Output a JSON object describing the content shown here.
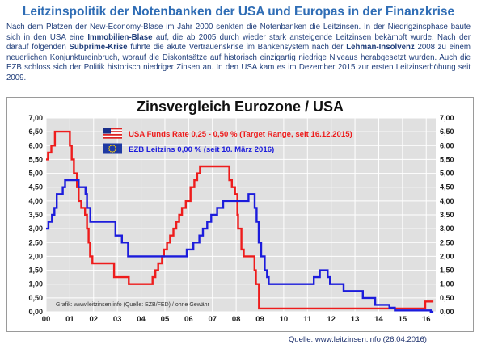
{
  "header": {
    "title": "Leitzinspolitik der Notenbanken der USA und Europas in der Finanzkrise",
    "intro_parts": [
      {
        "text": "Nach dem Platzen der New-Economy-Blase im Jahr 2000 senkten die Notenbanken die Leitzinsen. In der Niedrigzinsphase baute sich in den USA eine ",
        "bold": false
      },
      {
        "text": "Immobilien-Blase",
        "bold": true
      },
      {
        "text": " auf, die ab 2005 durch wieder stark ansteigende Leitzinsen bekämpft wurde.  Nach der darauf folgenden ",
        "bold": false
      },
      {
        "text": "Subprime-Krise",
        "bold": true
      },
      {
        "text": " führte die akute Vertrauenskrise im Bankensystem nach der ",
        "bold": false
      },
      {
        "text": "Lehman-Insolvenz",
        "bold": true
      },
      {
        "text": " 2008 zu einem neuerlichen Konjunktureinbruch, worauf die Diskontsätze auf historisch einzigartig niedrige Niveaus herabgesetzt wurden. Auch die EZB schloss sich der Politik historisch niedriger Zinsen an. In den USA kam es im Dezember 2015 zur ersten Leitzinserhöhung seit 2009.",
        "bold": false
      }
    ]
  },
  "footer": {
    "source": "Quelle: www.leitzinsen.info (26.04.2016)"
  },
  "chart_data": {
    "type": "line",
    "title": "Zinsvergleich Eurozone / USA",
    "xlabel": "",
    "ylabel": "",
    "xlim": [
      2000.0,
      2016.4
    ],
    "ylim": [
      0,
      7
    ],
    "x_ticks": [
      2000,
      2001,
      2002,
      2003,
      2004,
      2005,
      2006,
      2007,
      2008,
      2009,
      2010,
      2011,
      2012,
      2013,
      2014,
      2015,
      2016
    ],
    "x_tick_labels": [
      "00",
      "01",
      "02",
      "03",
      "04",
      "05",
      "06",
      "07",
      "08",
      "09",
      "10",
      "11",
      "12",
      "13",
      "14",
      "15",
      "16"
    ],
    "y_ticks": [
      0,
      0.5,
      1,
      1.5,
      2,
      2.5,
      3,
      3.5,
      4,
      4.5,
      5,
      5.5,
      6,
      6.5,
      7
    ],
    "y_tick_labels": [
      "0,00",
      "0,50",
      "1,00",
      "1,50",
      "2,00",
      "2,50",
      "3,00",
      "3,50",
      "4,00",
      "4,50",
      "5,00",
      "5,50",
      "6,00",
      "6,50",
      "7,00"
    ],
    "grid": true,
    "legend_position": "top-center",
    "colors": {
      "usa": "#ee1c1c",
      "ezb": "#1c1cdc",
      "background": "#e0e0e0",
      "grid": "#ffffff"
    },
    "watermark": "Grafik: www.leitzinsen.info (Quelle: EZB/FED) / ohne Gewähr",
    "series": [
      {
        "key": "usa",
        "name": "USA Funds Rate 0,25 - 0,50 % (Target Range, seit 16.12.2015)",
        "flag": "us-flag",
        "step": true,
        "points": [
          [
            2000.0,
            5.5
          ],
          [
            2000.08,
            5.75
          ],
          [
            2000.22,
            6.0
          ],
          [
            2000.37,
            6.5
          ],
          [
            2001.0,
            6.0
          ],
          [
            2001.08,
            5.5
          ],
          [
            2001.17,
            5.0
          ],
          [
            2001.3,
            4.5
          ],
          [
            2001.37,
            4.0
          ],
          [
            2001.48,
            3.75
          ],
          [
            2001.64,
            3.5
          ],
          [
            2001.72,
            3.0
          ],
          [
            2001.79,
            2.5
          ],
          [
            2001.85,
            2.0
          ],
          [
            2001.95,
            1.75
          ],
          [
            2002.86,
            1.25
          ],
          [
            2003.48,
            1.0
          ],
          [
            2004.48,
            1.25
          ],
          [
            2004.6,
            1.5
          ],
          [
            2004.72,
            1.75
          ],
          [
            2004.88,
            2.0
          ],
          [
            2004.96,
            2.25
          ],
          [
            2005.09,
            2.5
          ],
          [
            2005.22,
            2.75
          ],
          [
            2005.36,
            3.0
          ],
          [
            2005.48,
            3.25
          ],
          [
            2005.6,
            3.5
          ],
          [
            2005.72,
            3.75
          ],
          [
            2005.88,
            4.0
          ],
          [
            2006.08,
            4.5
          ],
          [
            2006.24,
            4.75
          ],
          [
            2006.36,
            5.0
          ],
          [
            2006.48,
            5.25
          ],
          [
            2007.71,
            4.75
          ],
          [
            2007.82,
            4.5
          ],
          [
            2007.95,
            4.25
          ],
          [
            2008.05,
            3.5
          ],
          [
            2008.08,
            3.0
          ],
          [
            2008.22,
            2.25
          ],
          [
            2008.32,
            2.0
          ],
          [
            2008.77,
            1.5
          ],
          [
            2008.83,
            1.0
          ],
          [
            2008.96,
            0.12
          ],
          [
            2015.96,
            0.37
          ]
        ],
        "x_end": 2016.3
      },
      {
        "key": "ezb",
        "name": "EZB Leitzins 0,00 %  (seit 10. März 2016)",
        "flag": "eu-flag",
        "step": true,
        "points": [
          [
            2000.0,
            3.0
          ],
          [
            2000.1,
            3.25
          ],
          [
            2000.25,
            3.5
          ],
          [
            2000.35,
            3.75
          ],
          [
            2000.45,
            4.25
          ],
          [
            2000.7,
            4.5
          ],
          [
            2000.8,
            4.75
          ],
          [
            2001.37,
            4.5
          ],
          [
            2001.66,
            4.25
          ],
          [
            2001.72,
            3.75
          ],
          [
            2001.86,
            3.25
          ],
          [
            2002.92,
            2.75
          ],
          [
            2003.19,
            2.5
          ],
          [
            2003.45,
            2.0
          ],
          [
            2005.92,
            2.25
          ],
          [
            2006.2,
            2.5
          ],
          [
            2006.45,
            2.75
          ],
          [
            2006.6,
            3.0
          ],
          [
            2006.78,
            3.25
          ],
          [
            2006.95,
            3.5
          ],
          [
            2007.2,
            3.75
          ],
          [
            2007.45,
            4.0
          ],
          [
            2008.52,
            4.25
          ],
          [
            2008.78,
            3.75
          ],
          [
            2008.86,
            3.25
          ],
          [
            2008.95,
            2.5
          ],
          [
            2009.05,
            2.0
          ],
          [
            2009.2,
            1.5
          ],
          [
            2009.3,
            1.25
          ],
          [
            2009.37,
            1.0
          ],
          [
            2011.27,
            1.25
          ],
          [
            2011.52,
            1.5
          ],
          [
            2011.85,
            1.25
          ],
          [
            2011.95,
            1.0
          ],
          [
            2012.52,
            0.75
          ],
          [
            2013.33,
            0.5
          ],
          [
            2013.85,
            0.25
          ],
          [
            2014.45,
            0.15
          ],
          [
            2014.68,
            0.05
          ],
          [
            2016.19,
            0.0
          ]
        ],
        "x_end": 2016.3
      }
    ]
  }
}
